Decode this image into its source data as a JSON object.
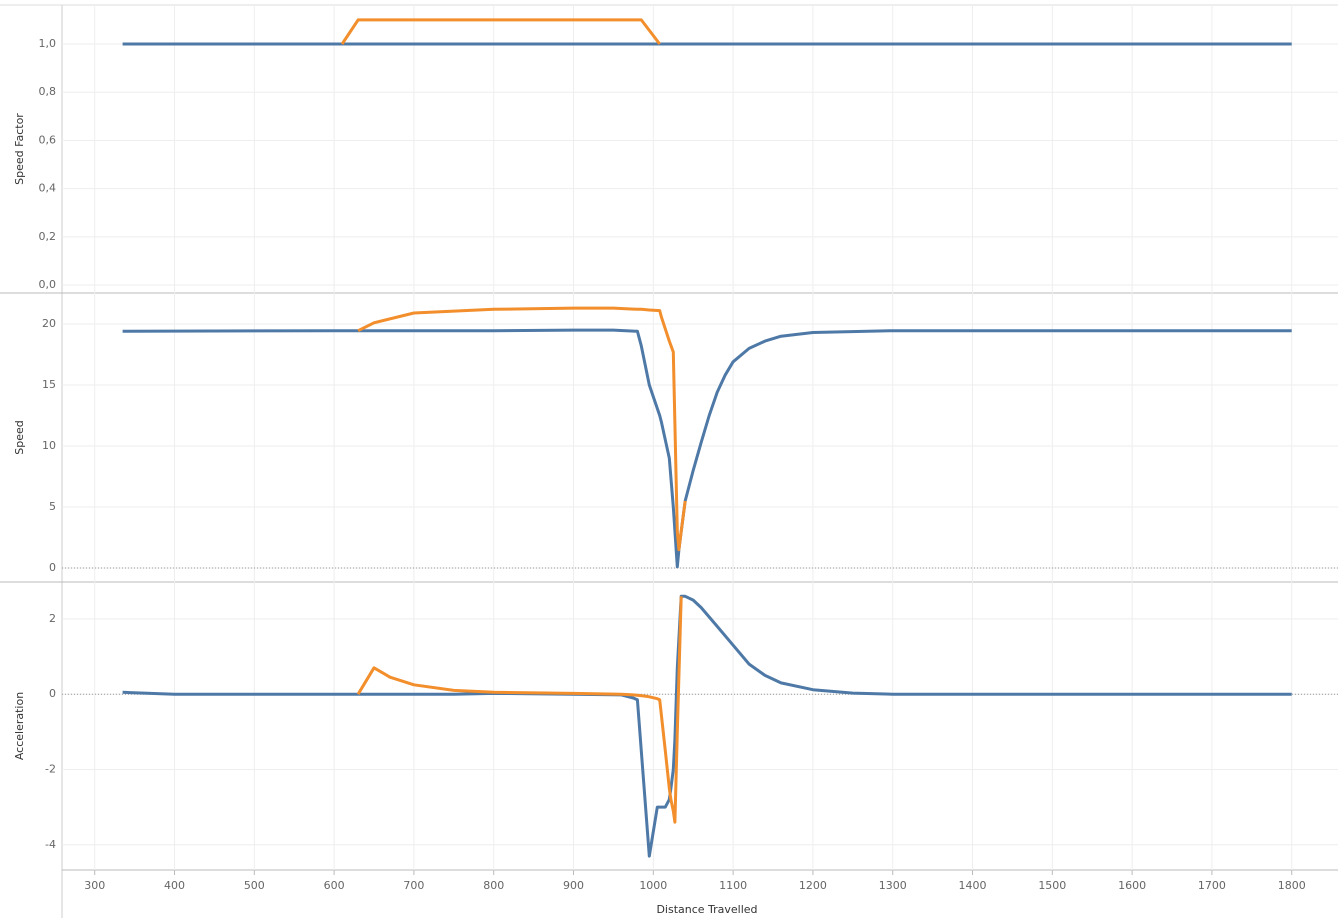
{
  "chart_data": [
    {
      "type": "line",
      "ylabel": "Speed Factor",
      "x": [
        335,
        610,
        630,
        985,
        1008,
        1800
      ],
      "series": [
        {
          "name": "Blue",
          "color": "#4e79a7",
          "values": [
            1,
            1,
            1,
            1,
            1,
            1
          ]
        },
        {
          "name": "Orange",
          "color": "#f28e2b",
          "values": [
            null,
            1,
            1.1,
            1.1,
            1.0,
            null
          ]
        }
      ],
      "ylim": [
        -0.033,
        1.162
      ],
      "yticks": [
        {
          "value": 0,
          "label": "0,0"
        },
        {
          "value": 0.2,
          "label": "0,2"
        },
        {
          "value": 0.4,
          "label": "0,4"
        },
        {
          "value": 0.6,
          "label": "0,6"
        },
        {
          "value": 0.8,
          "label": "0,8"
        },
        {
          "value": 1.0,
          "label": "1,0"
        }
      ],
      "grid": true,
      "zero_line": false
    },
    {
      "type": "line",
      "ylabel": "Speed",
      "x": [
        335,
        600,
        630,
        650,
        700,
        800,
        900,
        950,
        980,
        985,
        995,
        1008,
        1010,
        1020,
        1025,
        1030,
        1032,
        1035,
        1040,
        1050,
        1060,
        1070,
        1080,
        1090,
        1100,
        1120,
        1140,
        1160,
        1200,
        1300,
        1800
      ],
      "series": [
        {
          "name": "Blue",
          "color": "#4e79a7",
          "values": [
            19.4,
            19.45,
            19.45,
            19.45,
            19.45,
            19.45,
            19.5,
            19.5,
            19.4,
            18.2,
            15,
            12.5,
            12,
            9,
            5,
            0.1,
            1.5,
            3,
            5.5,
            8,
            10.3,
            12.5,
            14.4,
            15.8,
            16.9,
            18,
            18.6,
            19,
            19.3,
            19.45,
            19.45
          ]
        },
        {
          "name": "Orange",
          "color": "#f28e2b",
          "values": [
            null,
            null,
            19.45,
            20.1,
            20.9,
            21.2,
            21.3,
            21.3,
            21.2,
            21.2,
            21.15,
            21.1,
            20.6,
            18.6,
            17.7,
            3,
            1.5,
            3,
            5.5,
            null,
            null,
            null,
            null,
            null,
            null,
            null,
            null,
            null,
            null,
            null,
            null
          ]
        }
      ],
      "ylim": [
        -1.15,
        22.54
      ],
      "yticks": [
        0,
        5,
        10,
        15,
        20
      ],
      "grid": true,
      "zero_line": true
    },
    {
      "type": "line",
      "ylabel": "Acceleration",
      "xlabel": "Distance Travelled",
      "x": [
        335,
        400,
        630,
        650,
        670,
        700,
        750,
        800,
        900,
        960,
        975,
        980,
        990,
        995,
        1005,
        1008,
        1015,
        1020,
        1022,
        1025,
        1027,
        1030,
        1035,
        1040,
        1050,
        1060,
        1080,
        1100,
        1120,
        1140,
        1160,
        1200,
        1250,
        1300,
        1800
      ],
      "series": [
        {
          "name": "Blue",
          "color": "#4e79a7",
          "values": [
            0.05,
            0,
            0,
            0,
            0,
            0,
            0,
            0.02,
            0,
            -0.02,
            -0.1,
            -0.15,
            -2.9,
            -4.3,
            -3,
            -3,
            -3,
            -2.8,
            -2.5,
            -2,
            -1.2,
            0.7,
            2.6,
            2.6,
            2.5,
            2.3,
            1.8,
            1.3,
            0.8,
            0.5,
            0.3,
            0.12,
            0.03,
            0,
            0
          ]
        },
        {
          "name": "Orange",
          "color": "#f28e2b",
          "values": [
            null,
            null,
            0,
            0.7,
            0.45,
            0.25,
            0.1,
            0.05,
            0.02,
            0,
            -0.02,
            -0.03,
            -0.05,
            -0.07,
            -0.12,
            -0.15,
            -1.5,
            -2.5,
            -2.8,
            -3.1,
            -3.4,
            -1,
            2.6,
            null,
            null,
            null,
            null,
            null,
            null,
            null,
            null,
            null,
            null,
            null,
            null
          ]
        }
      ],
      "ylim": [
        -4.67,
        2.98
      ],
      "yticks": [
        -4,
        -2,
        0,
        2
      ],
      "grid": true,
      "zero_line": true,
      "xlim": [
        259,
        1858
      ],
      "xticks": [
        300,
        400,
        500,
        600,
        700,
        800,
        900,
        1000,
        1100,
        1200,
        1300,
        1400,
        1500,
        1600,
        1700,
        1800
      ]
    }
  ]
}
